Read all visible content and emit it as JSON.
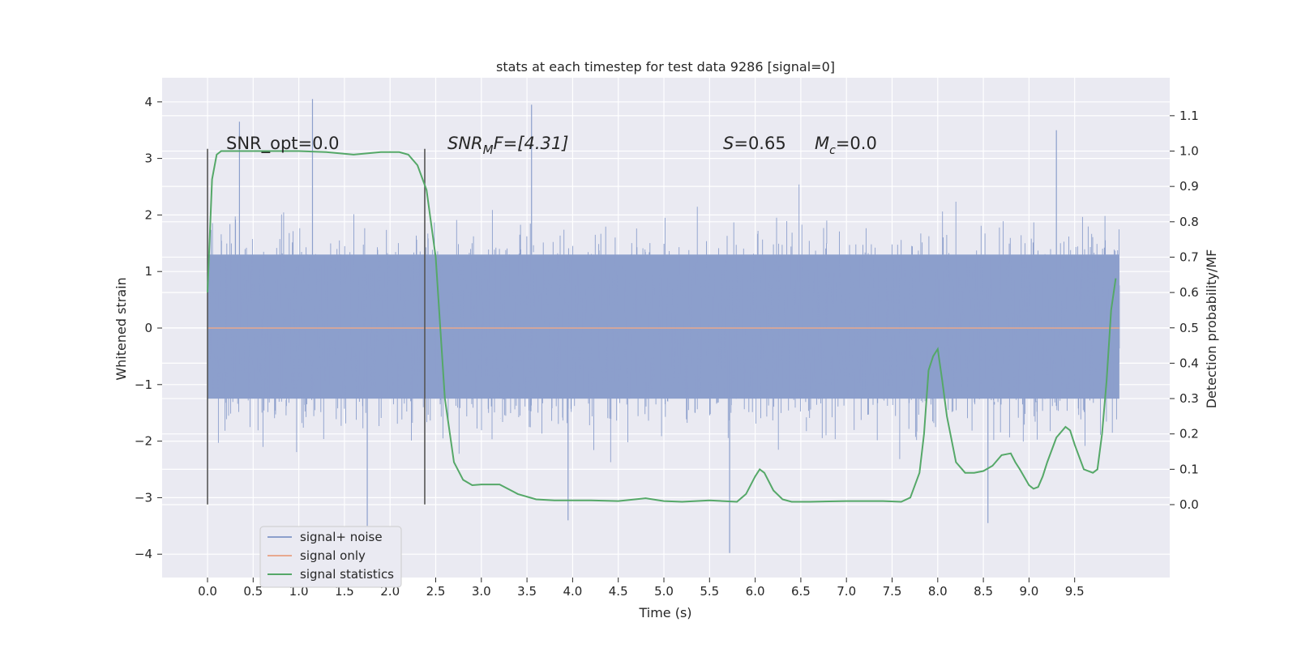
{
  "chart_data": {
    "type": "line",
    "title": "stats at each timestep for test data 9286 [signal=0]",
    "xlabel": "Time (s)",
    "ylabel": "Whitened strain",
    "ylabel_right": "Detection probability/MF",
    "xlim": [
      -0.5,
      10.5
    ],
    "ylim": [
      -4.4,
      4.4
    ],
    "ylim_right": [
      -0.2,
      1.2
    ],
    "x_ticks": [
      "0.0",
      "0.5",
      "1.0",
      "1.5",
      "2.0",
      "2.5",
      "3.0",
      "3.5",
      "4.0",
      "4.5",
      "5.0",
      "5.5",
      "6.0",
      "6.5",
      "7.0",
      "7.5",
      "8.0",
      "8.5",
      "9.0",
      "9.5"
    ],
    "y_ticks": [
      4,
      3,
      2,
      1,
      0,
      -1,
      -2,
      -3,
      -4
    ],
    "y_tick_labels": [
      "4",
      "3",
      "2",
      "1",
      "0",
      "−1",
      "−2",
      "−3",
      "−4"
    ],
    "y_right_ticks": [
      1.1,
      1.0,
      0.9,
      0.8,
      0.7,
      0.6,
      0.5,
      0.4,
      0.3,
      0.2,
      0.1,
      0.0
    ],
    "y_right_tick_labels": [
      "1.1",
      "1.0",
      "0.9",
      "0.8",
      "0.7",
      "0.6",
      "0.5",
      "0.4",
      "0.3",
      "0.2",
      "0.1",
      "0.0"
    ],
    "grid": true,
    "legend_position": "lower-left",
    "legend": [
      {
        "label": "signal+ noise",
        "color": "#8c9fcc"
      },
      {
        "label": "signal only",
        "color": "#e8a98f"
      },
      {
        "label": "signal statistics",
        "color": "#55a868"
      }
    ],
    "annotations": {
      "snr_opt": "SNR_opt=0.0",
      "snr_mf_name": "SNR",
      "snr_mf_sub": "M",
      "snr_mf_rest": "F=[4.31]",
      "s_name": "S",
      "s_value": "=0.65",
      "mc_name": "M",
      "mc_sub": "c",
      "mc_value": "=0.0"
    },
    "vertical_markers_x": [
      0.0,
      2.38
    ],
    "series": [
      {
        "name": "signal+ noise",
        "color": "#8c9fcc",
        "x_range": [
          0.0,
          9.99
        ],
        "approx_envelope": {
          "typical_upper": 1.3,
          "typical_lower": -1.25,
          "peak_upper": 4.05,
          "peak_lower": -3.98
        }
      },
      {
        "name": "signal only",
        "color": "#e8a98f",
        "x": [
          0.0,
          9.99
        ],
        "y": [
          0.0,
          0.0
        ]
      },
      {
        "name": "signal statistics",
        "color": "#55a868",
        "axis": "right",
        "x": [
          0.0,
          0.05,
          0.1,
          0.15,
          0.25,
          0.5,
          1.0,
          1.3,
          1.6,
          1.9,
          2.1,
          2.2,
          2.3,
          2.4,
          2.5,
          2.6,
          2.7,
          2.8,
          2.9,
          3.0,
          3.2,
          3.4,
          3.6,
          3.8,
          4.2,
          4.5,
          4.8,
          5.0,
          5.2,
          5.5,
          5.8,
          5.9,
          6.0,
          6.05,
          6.1,
          6.2,
          6.3,
          6.4,
          6.6,
          7.0,
          7.4,
          7.6,
          7.7,
          7.8,
          7.85,
          7.9,
          7.95,
          8.0,
          8.05,
          8.1,
          8.2,
          8.3,
          8.4,
          8.5,
          8.6,
          8.7,
          8.8,
          8.85,
          8.9,
          9.0,
          9.05,
          9.1,
          9.15,
          9.2,
          9.3,
          9.4,
          9.45,
          9.5,
          9.6,
          9.7,
          9.75,
          9.8,
          9.85,
          9.9,
          9.95
        ],
        "y": [
          0.6,
          0.92,
          0.99,
          1.0,
          1.0,
          1.0,
          1.0,
          0.997,
          0.99,
          0.997,
          0.997,
          0.99,
          0.96,
          0.89,
          0.7,
          0.3,
          0.12,
          0.07,
          0.055,
          0.057,
          0.057,
          0.03,
          0.015,
          0.012,
          0.012,
          0.01,
          0.018,
          0.01,
          0.008,
          0.012,
          0.008,
          0.03,
          0.08,
          0.1,
          0.09,
          0.04,
          0.015,
          0.008,
          0.008,
          0.01,
          0.01,
          0.008,
          0.02,
          0.09,
          0.2,
          0.38,
          0.42,
          0.44,
          0.35,
          0.25,
          0.12,
          0.09,
          0.09,
          0.095,
          0.11,
          0.14,
          0.145,
          0.12,
          0.1,
          0.055,
          0.045,
          0.05,
          0.08,
          0.12,
          0.19,
          0.22,
          0.21,
          0.17,
          0.1,
          0.09,
          0.1,
          0.2,
          0.35,
          0.55,
          0.64
        ]
      }
    ]
  }
}
